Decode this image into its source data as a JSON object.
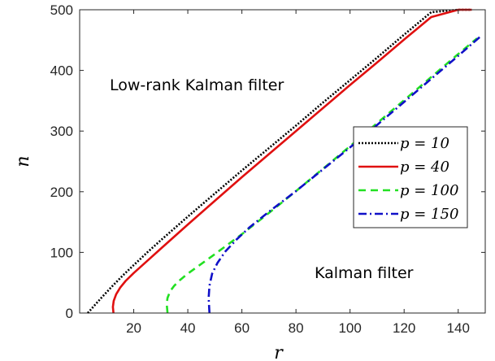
{
  "chart_data": {
    "type": "line",
    "xlabel": "r",
    "ylabel": "n",
    "xlim": [
      0,
      150
    ],
    "ylim": [
      0,
      500
    ],
    "xticks": [
      20,
      40,
      60,
      80,
      100,
      120,
      140
    ],
    "yticks": [
      0,
      100,
      200,
      300,
      400,
      500
    ],
    "grid": false,
    "legend_position": "right",
    "annotations": [
      {
        "text": "Low-rank Kalman filter",
        "x": 35,
        "y": 405
      },
      {
        "text": "Kalman filter",
        "x": 102,
        "y": 60
      }
    ],
    "series": [
      {
        "name": "p = 10",
        "color": "#000000",
        "style": "dotted",
        "x": [
          3,
          5,
          8,
          12,
          16,
          20,
          25,
          30,
          40,
          50,
          60,
          70,
          80,
          90,
          100,
          110,
          120,
          130,
          140,
          145
        ],
        "y": [
          0,
          10,
          25,
          44,
          62,
          79,
          100,
          120,
          159,
          197,
          235,
          272,
          309,
          347,
          384,
          421,
          459,
          496,
          533,
          552
        ]
      },
      {
        "name": "p = 40",
        "color": "#e01010",
        "style": "solid",
        "x": [
          12.5,
          12.3,
          12.6,
          13.5,
          15,
          17,
          20,
          25,
          30,
          40,
          50,
          60,
          70,
          80,
          90,
          100,
          110,
          120,
          130,
          140,
          145
        ],
        "y": [
          0,
          10,
          20,
          31,
          42,
          53,
          66,
          86,
          106,
          146,
          185,
          224,
          262,
          300,
          338,
          376,
          413,
          451,
          488,
          525,
          544
        ]
      },
      {
        "name": "p = 100",
        "color": "#22e022",
        "style": "dashed",
        "x": [
          32.5,
          32.2,
          32.5,
          33.5,
          35,
          37,
          40,
          45,
          50,
          60,
          70,
          80,
          90,
          100,
          110,
          120,
          130,
          140,
          147
        ],
        "y": [
          0,
          15,
          25,
          36,
          45,
          54,
          65,
          81,
          97,
          130,
          165,
          201,
          238,
          275,
          313,
          351,
          389,
          427,
          453
        ]
      },
      {
        "name": "p = 150",
        "color": "#1010c8",
        "style": "dashdot",
        "x": [
          48,
          47.7,
          48,
          49,
          51,
          54,
          58,
          63,
          70,
          80,
          90,
          100,
          110,
          120,
          130,
          140,
          148
        ],
        "y": [
          0,
          25,
          45,
          65,
          83,
          102,
          121,
          142,
          167,
          201,
          237,
          273,
          310,
          348,
          386,
          424,
          455
        ]
      }
    ]
  }
}
